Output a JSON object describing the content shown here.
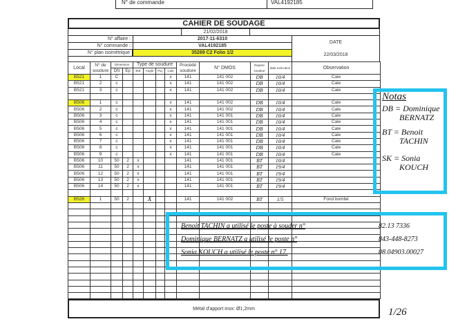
{
  "top_fragment": {
    "label": "N° de commande",
    "value": "VAL4192185"
  },
  "title": "CAHIER DE SOUDAGE",
  "sheet_date": "21/02/2018",
  "info": {
    "affaire_label": "N° affaire :",
    "affaire_value": "2017-11-6310",
    "commande_label": "N° commande :",
    "commande_value": "VAL4192185",
    "plan_label": "N° plan isométrique",
    "plan_value": "35269 C2 Folio 1/2",
    "date_label": "DATE",
    "date_value": "22/03/2018"
  },
  "columns": {
    "local": "Local",
    "num": "N° de soudure",
    "dimension": "Dimension",
    "dn": "DN",
    "ep": "Ep",
    "type": "Type de soudure",
    "bw": "BW",
    "angle": "Angle",
    "piq": "Piq.",
    "cale": "Cale",
    "procede": "Procédé soudure",
    "dmos": "N° DMOS",
    "repere": "Repère soudeur",
    "date": "date exécution",
    "obs": "Observation"
  },
  "rows": [
    {
      "local": "B521",
      "hl": true,
      "num": "1",
      "dn": "C",
      "ep": "",
      "bw": "",
      "angle": "",
      "piq": "",
      "cale": "x",
      "proc": "141",
      "dmos": "141 002",
      "rep": "DB",
      "date": "10/4",
      "obs": "Cale"
    },
    {
      "local": "B521",
      "num": "2",
      "dn": "c",
      "ep": "",
      "bw": "",
      "angle": "",
      "piq": "",
      "cale": "x",
      "proc": "141",
      "dmos": "141 002",
      "rep": "DB",
      "date": "10/4",
      "obs": "Cale"
    },
    {
      "local": "B521",
      "num": "3",
      "dn": "c",
      "ep": "",
      "bw": "",
      "angle": "",
      "piq": "",
      "cale": "x",
      "proc": "141",
      "dmos": "141 002",
      "rep": "DB",
      "date": "10/4",
      "obs": "Cale"
    },
    {},
    {
      "local": "B506",
      "hl": true,
      "num": "1",
      "dn": "c",
      "cale": "x",
      "proc": "141",
      "dmos": "141 002",
      "rep": "DB",
      "date": "10/4",
      "obs": "Cale"
    },
    {
      "local": "B506",
      "num": "2",
      "dn": "c",
      "cale": "x",
      "proc": "141",
      "dmos": "141 002",
      "rep": "DB",
      "date": "10/4",
      "obs": "Cale"
    },
    {
      "local": "B506",
      "num": "3",
      "dn": "c",
      "cale": "x",
      "proc": "141",
      "dmos": "141 001",
      "rep": "DB",
      "date": "10/4",
      "obs": "Cale"
    },
    {
      "local": "B506",
      "num": "4",
      "dn": "c",
      "cale": "x",
      "proc": "141",
      "dmos": "141 001",
      "rep": "DB",
      "date": "10/4",
      "obs": "Cale"
    },
    {
      "local": "B506",
      "num": "5",
      "dn": "c",
      "cale": "x",
      "proc": "141",
      "dmos": "141 001",
      "rep": "DB",
      "date": "10/4",
      "obs": "Cale"
    },
    {
      "local": "B506",
      "num": "6",
      "dn": "c",
      "cale": "x",
      "proc": "141",
      "dmos": "141 001",
      "rep": "DB",
      "date": "10/4",
      "obs": "Cale"
    },
    {
      "local": "B506",
      "num": "7",
      "dn": "c",
      "cale": "x",
      "proc": "141",
      "dmos": "141 001",
      "rep": "DB",
      "date": "10/4",
      "obs": "Cale"
    },
    {
      "local": "B506",
      "num": "8",
      "dn": "c",
      "cale": "x",
      "proc": "141",
      "dmos": "141 001",
      "rep": "DB",
      "date": "10/4",
      "obs": "Cale"
    },
    {
      "local": "B506",
      "num": "9",
      "dn": "c",
      "cale": "x",
      "proc": "141",
      "dmos": "141 001",
      "rep": "DB",
      "date": "10/4",
      "obs": "Cale"
    },
    {
      "local": "B506",
      "num": "10",
      "dn": "50",
      "ep": "2",
      "bw": "x",
      "proc": "141",
      "dmos": "141 001",
      "rep": "BT",
      "date": "10/4",
      "obs": ""
    },
    {
      "local": "B506",
      "num": "11",
      "dn": "50",
      "ep": "2",
      "bw": "x",
      "proc": "141",
      "dmos": "141 001",
      "rep": "BT",
      "date": "19/4",
      "obs": ""
    },
    {
      "local": "B506",
      "num": "12",
      "dn": "50",
      "ep": "2",
      "bw": "x",
      "proc": "141",
      "dmos": "141 001",
      "rep": "BT",
      "date": "19/4",
      "obs": ""
    },
    {
      "local": "B506",
      "num": "13",
      "dn": "50",
      "ep": "2",
      "bw": "x",
      "proc": "141",
      "dmos": "141 001",
      "rep": "BT",
      "date": "19/4",
      "obs": ""
    },
    {
      "local": "B506",
      "num": "14",
      "dn": "50",
      "ep": "2",
      "bw": "x",
      "proc": "141",
      "dmos": "141 001",
      "rep": "BT",
      "date": "19/4",
      "obs": ""
    },
    {},
    {
      "local": "B526",
      "hl": true,
      "num": "1",
      "dn": "50",
      "ep": "2",
      "angle": "X",
      "proc": "141",
      "dmos": "141 002",
      "rep": "BT",
      "date": "1/5",
      "obs": "Fond bombé"
    }
  ],
  "footer": "Métal d'apport inox: Ø1,2mm",
  "notes": {
    "title": "Notas",
    "lines": [
      "DB = Dominique",
      "BERNATZ",
      "BT = Benoit",
      "TACHIN",
      "SK = Sonia",
      "KOUCH"
    ]
  },
  "poste_notes": [
    {
      "text": "Benoit TACHIN a utilisé le poste à souder n°",
      "num": "82.13 7336"
    },
    {
      "text": "Dominique BERNATZ a utilisé le poste n°",
      "num": "843-448-8273"
    },
    {
      "text": "Sonia KOUCH a utilisé le poste n° 17.",
      "num": "08.04903.00027"
    }
  ],
  "page_number": "1/26",
  "colors": {
    "highlight": "#f3f32a",
    "marker": "#22c3ee"
  }
}
